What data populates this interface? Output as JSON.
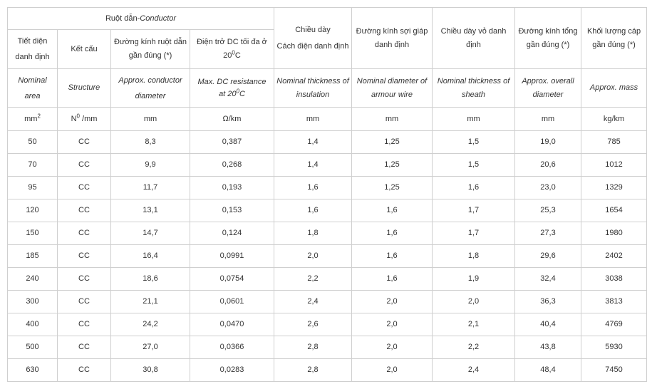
{
  "header": {
    "conductor_vn": "Ruột dẫn-",
    "conductor_en": "Conductor",
    "cols_vn": {
      "area_line1": "Tiết diện",
      "area_line2": "danh định",
      "structure": "Kết cấu",
      "diameter": "Đường kính ruột dẫn gần đúng (*)",
      "resistance_pre": "Điện trở DC tối đa ở 20",
      "resistance_sup": "0",
      "resistance_post": "C",
      "insulation_line1": "Chiều dày",
      "insulation_line2": "Cách điện danh định",
      "armour": "Đường kính sợi giáp danh định",
      "sheath": "Chiều dày vỏ danh định",
      "overall": "Đường kính tổng gần đúng (*)",
      "mass": "Khối lượng cáp gần đúng (*)"
    },
    "cols_en": {
      "area_line1": "Nominal",
      "area_line2": "area",
      "structure": "Structure",
      "diameter_line1": "Approx. conductor",
      "diameter_line2": "diameter",
      "resistance_line1": "Max. DC resistance",
      "resistance_pre2": "at 20",
      "resistance_sup": "0",
      "resistance_post": "C",
      "insulation": "Nominal thickness of insulation",
      "armour": "Nominal diameter of armour wire",
      "sheath": "Nominal thickness of sheath",
      "overall": "Approx. overall diameter",
      "mass": "Approx. mass"
    },
    "units": {
      "area_base": "mm",
      "area_sup": "2",
      "structure_base": "N",
      "structure_sup": "0",
      "structure_post": " /mm",
      "diameter": "mm",
      "resistance": "Ω/km",
      "insulation": "mm",
      "armour": "mm",
      "sheath": "mm",
      "overall": "mm",
      "mass": "kg/km"
    }
  },
  "rows": [
    [
      "50",
      "CC",
      "8,3",
      "0,387",
      "1,4",
      "1,25",
      "1,5",
      "19,0",
      "785"
    ],
    [
      "70",
      "CC",
      "9,9",
      "0,268",
      "1,4",
      "1,25",
      "1,5",
      "20,6",
      "1012"
    ],
    [
      "95",
      "CC",
      "11,7",
      "0,193",
      "1,6",
      "1,25",
      "1,6",
      "23,0",
      "1329"
    ],
    [
      "120",
      "CC",
      "13,1",
      "0,153",
      "1,6",
      "1,6",
      "1,7",
      "25,3",
      "1654"
    ],
    [
      "150",
      "CC",
      "14,7",
      "0,124",
      "1,8",
      "1,6",
      "1,7",
      "27,3",
      "1980"
    ],
    [
      "185",
      "CC",
      "16,4",
      "0,0991",
      "2,0",
      "1,6",
      "1,8",
      "29,6",
      "2402"
    ],
    [
      "240",
      "CC",
      "18,6",
      "0,0754",
      "2,2",
      "1,6",
      "1,9",
      "32,4",
      "3038"
    ],
    [
      "300",
      "CC",
      "21,1",
      "0,0601",
      "2,4",
      "2,0",
      "2,0",
      "36,3",
      "3813"
    ],
    [
      "400",
      "CC",
      "24,2",
      "0,0470",
      "2,6",
      "2,0",
      "2,1",
      "40,4",
      "4769"
    ],
    [
      "500",
      "CC",
      "27,0",
      "0,0366",
      "2,8",
      "2,0",
      "2,2",
      "43,8",
      "5930"
    ],
    [
      "630",
      "CC",
      "30,8",
      "0,0283",
      "2,8",
      "2,0",
      "2,4",
      "48,4",
      "7450"
    ]
  ]
}
